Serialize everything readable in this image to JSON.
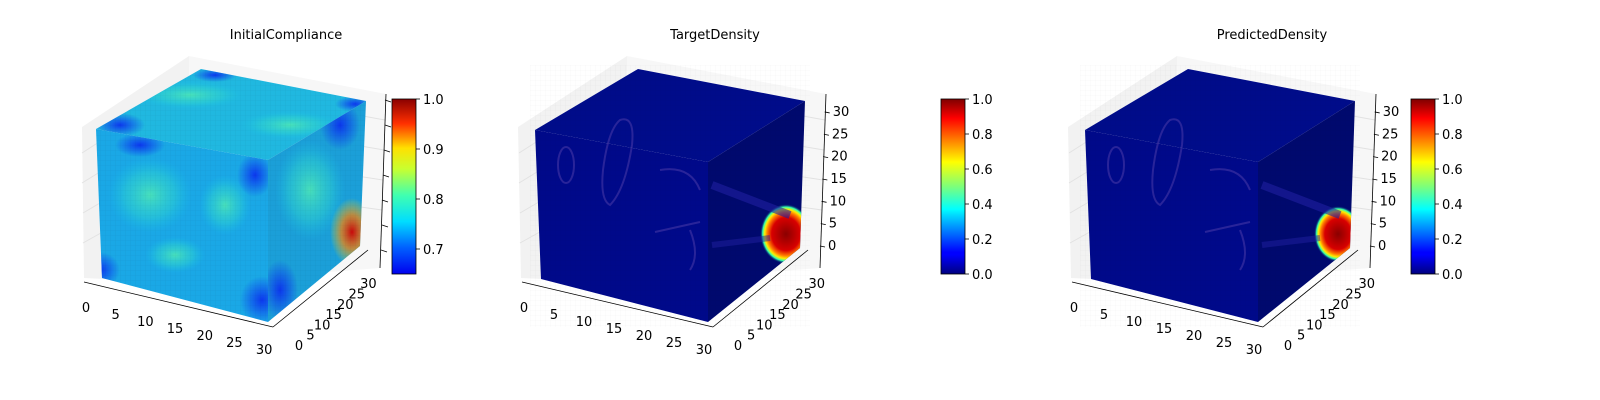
{
  "colors": {
    "background": "#ffffff",
    "pane": "#f2f2f2",
    "grid": "#e3e3e3",
    "axis": "#000000"
  },
  "chart_data": [
    {
      "type": "heatmap",
      "subtype": "3d-voxel",
      "colormap": "jet",
      "title": "InitialCompliance",
      "x_ticks": [
        "0",
        "5",
        "10",
        "15",
        "20",
        "25",
        "30"
      ],
      "y_ticks": [
        "0",
        "5",
        "10",
        "15",
        "20",
        "25",
        "30"
      ],
      "z_ticks": [],
      "xlim": [
        0,
        32
      ],
      "ylim": [
        0,
        32
      ],
      "zlim": [
        0,
        32
      ],
      "colorbar": {
        "vmin": 0.65,
        "vmax": 1.0,
        "ticks": [
          "0.7",
          "0.8",
          "0.9",
          "1.0"
        ],
        "tick_values": [
          0.7,
          0.8,
          0.9,
          1.0
        ]
      },
      "grid": true
    },
    {
      "type": "heatmap",
      "subtype": "3d-voxel",
      "colormap": "jet",
      "title": "TargetDensity",
      "x_ticks": [
        "0",
        "5",
        "10",
        "15",
        "20",
        "25",
        "30"
      ],
      "y_ticks": [
        "0",
        "5",
        "10",
        "15",
        "20",
        "25",
        "30"
      ],
      "z_ticks": [
        "0",
        "5",
        "10",
        "15",
        "20",
        "25",
        "30"
      ],
      "xlim": [
        0,
        32
      ],
      "ylim": [
        0,
        32
      ],
      "zlim": [
        0,
        32
      ],
      "colorbar": {
        "vmin": 0.0,
        "vmax": 1.0,
        "ticks": [
          "0.0",
          "0.2",
          "0.4",
          "0.6",
          "0.8",
          "1.0"
        ],
        "tick_values": [
          0,
          0.2,
          0.4,
          0.6,
          0.8,
          1.0
        ]
      },
      "grid": true
    },
    {
      "type": "heatmap",
      "subtype": "3d-voxel",
      "colormap": "jet",
      "title": "PredictedDensity",
      "x_ticks": [
        "0",
        "5",
        "10",
        "15",
        "20",
        "25",
        "30"
      ],
      "y_ticks": [
        "0",
        "5",
        "10",
        "15",
        "20",
        "25",
        "30"
      ],
      "z_ticks": [
        "0",
        "5",
        "10",
        "15",
        "20",
        "25",
        "30"
      ],
      "xlim": [
        0,
        32
      ],
      "ylim": [
        0,
        32
      ],
      "zlim": [
        0,
        32
      ],
      "colorbar": {
        "vmin": 0.0,
        "vmax": 1.0,
        "ticks": [
          "0.0",
          "0.2",
          "0.4",
          "0.6",
          "0.8",
          "1.0"
        ],
        "tick_values": [
          0,
          0.2,
          0.4,
          0.6,
          0.8,
          1.0
        ]
      },
      "grid": true
    }
  ]
}
